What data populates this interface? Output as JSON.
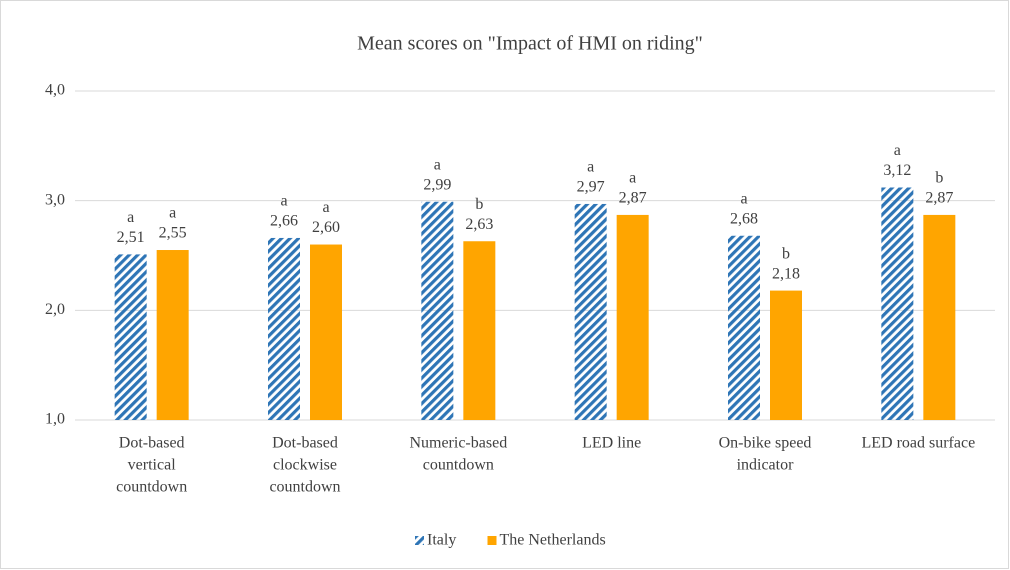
{
  "chart_data": {
    "type": "bar",
    "title": "Mean scores on \"Impact of HMI on riding\"",
    "categories": [
      [
        "Dot-based",
        "vertical",
        "countdown"
      ],
      [
        "Dot-based",
        "clockwise",
        "countdown"
      ],
      [
        "Numeric-based",
        "countdown"
      ],
      [
        "LED line"
      ],
      [
        "On-bike speed",
        "indicator"
      ],
      [
        "LED road surface"
      ]
    ],
    "series": [
      {
        "name": "Italy",
        "color": "#2e75b6",
        "pattern": "diagonal-stripes",
        "values": [
          2.51,
          2.66,
          2.99,
          2.97,
          2.68,
          3.12
        ],
        "value_labels": [
          "2,51",
          "2,66",
          "2,99",
          "2,97",
          "2,68",
          "3,12"
        ],
        "letters": [
          "a",
          "a",
          "a",
          "a",
          "a",
          "a"
        ]
      },
      {
        "name": "The Netherlands",
        "color": "#ffa500",
        "values": [
          2.55,
          2.6,
          2.63,
          2.87,
          2.18,
          2.87
        ],
        "value_labels": [
          "2,55",
          "2,60",
          "2,63",
          "2,87",
          "2,18",
          "2,87"
        ],
        "letters": [
          "a",
          "a",
          "b",
          "a",
          "b",
          "b"
        ]
      }
    ],
    "ylim": [
      1,
      4
    ],
    "yticks": [
      {
        "value": 1,
        "label": "1,0"
      },
      {
        "value": 2,
        "label": "2,0"
      },
      {
        "value": 3,
        "label": "3,0"
      },
      {
        "value": 4,
        "label": "4,0"
      }
    ],
    "grid": true,
    "legend": "bottom"
  }
}
